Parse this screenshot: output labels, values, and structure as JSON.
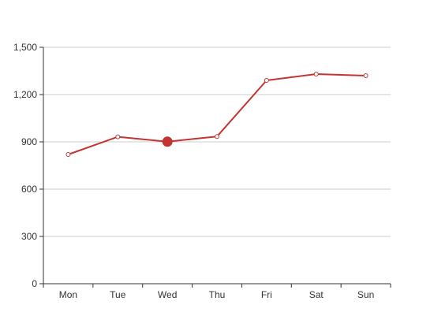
{
  "chart_data": {
    "type": "line",
    "categories": [
      "Mon",
      "Tue",
      "Wed",
      "Thu",
      "Fri",
      "Sat",
      "Sun"
    ],
    "series": [
      {
        "values": [
          820,
          932,
          901,
          934,
          1290,
          1330,
          1320
        ],
        "highlighted_index": 2
      }
    ],
    "y_ticks": [
      "0",
      "300",
      "600",
      "900",
      "1,200",
      "1,500"
    ],
    "ylim": [
      0,
      1500
    ],
    "grid": true,
    "legend": "none",
    "colors": {
      "line": "#c23531",
      "grid": "#cccccc",
      "axis": "#333333",
      "label": "#333333"
    }
  }
}
